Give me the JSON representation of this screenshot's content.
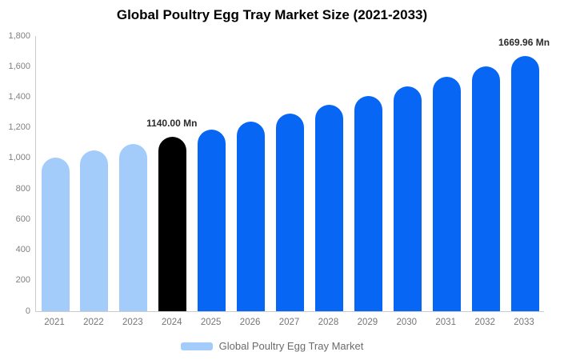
{
  "title": "Global Poultry Egg Tray Market Size (2021-2033)",
  "legend": {
    "label": "Global Poultry Egg Tray Market",
    "swatch_color": "#A3CCFA"
  },
  "colors": {
    "historical_bar": "#A3CCFA",
    "base_year_bar": "#000000",
    "forecast_bar": "#0866F5",
    "axis_line": "#CCCCCC",
    "ytick_label": "#808080",
    "xtick_label": "#757575",
    "data_label": "#2B2B2B",
    "background": "#FFFFFF"
  },
  "chart_data": {
    "type": "bar",
    "title": "Global Poultry Egg Tray Market Size (2021-2033)",
    "xlabel": "",
    "ylabel": "",
    "unit": "Mn",
    "categories": [
      "2021",
      "2022",
      "2023",
      "2024",
      "2025",
      "2026",
      "2027",
      "2028",
      "2029",
      "2030",
      "2031",
      "2032",
      "2033"
    ],
    "values": [
      1005,
      1050,
      1095,
      1140,
      1189,
      1241,
      1295,
      1351,
      1409,
      1470,
      1534,
      1600,
      1669.96
    ],
    "bar_colors": [
      "#A3CCFA",
      "#A3CCFA",
      "#A3CCFA",
      "#000000",
      "#0866F5",
      "#0866F5",
      "#0866F5",
      "#0866F5",
      "#0866F5",
      "#0866F5",
      "#0866F5",
      "#0866F5",
      "#0866F5"
    ],
    "annotations": [
      {
        "category": "2024",
        "text": "1140.00 Mn"
      },
      {
        "category": "2033",
        "text": "1669.96 Mn"
      }
    ],
    "ylim": [
      0,
      1800
    ],
    "ytick_step": 200,
    "ytick_labels": [
      "0",
      "200",
      "400",
      "600",
      "800",
      "1,000",
      "1,200",
      "1,400",
      "1,600",
      "1,800"
    ],
    "grid": false,
    "legend_entries": [
      "Global Poultry Egg Tray Market"
    ],
    "legend_position": "bottom"
  }
}
